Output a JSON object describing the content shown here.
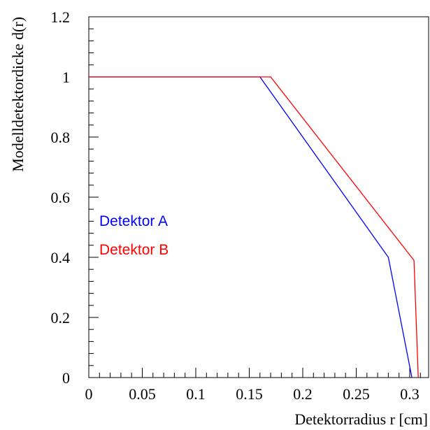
{
  "chart_data": {
    "type": "line",
    "title": "",
    "xlabel": "Detektorradius r [cm]",
    "ylabel": "Modelldetektordicke d(r)",
    "xlim": [
      0,
      0.31
    ],
    "ylim": [
      0,
      1.2
    ],
    "x_ticks": [
      0,
      0.05,
      0.1,
      0.15,
      0.2,
      0.25,
      0.3
    ],
    "x_tick_labels": [
      "0",
      "0.05",
      "0.1",
      "0.15",
      "0.2",
      "0.25",
      "0.3"
    ],
    "y_ticks": [
      0,
      0.2,
      0.4,
      0.6,
      0.8,
      1,
      1.2
    ],
    "y_tick_labels": [
      "0",
      "0.2",
      "0.4",
      "0.6",
      "0.8",
      "1",
      "1.2"
    ],
    "grid": false,
    "legend_position": "left-middle",
    "series": [
      {
        "name": "Detektor A",
        "color": "#0000ff",
        "points": [
          [
            0,
            1.0
          ],
          [
            0.16,
            1.0
          ],
          [
            0.28,
            0.4
          ],
          [
            0.302,
            0.0
          ]
        ]
      },
      {
        "name": "Detektor B",
        "color": "#ff0000",
        "points": [
          [
            0,
            1.0
          ],
          [
            0.17,
            1.0
          ],
          [
            0.304,
            0.39
          ],
          [
            0.308,
            0.0
          ]
        ]
      }
    ]
  }
}
